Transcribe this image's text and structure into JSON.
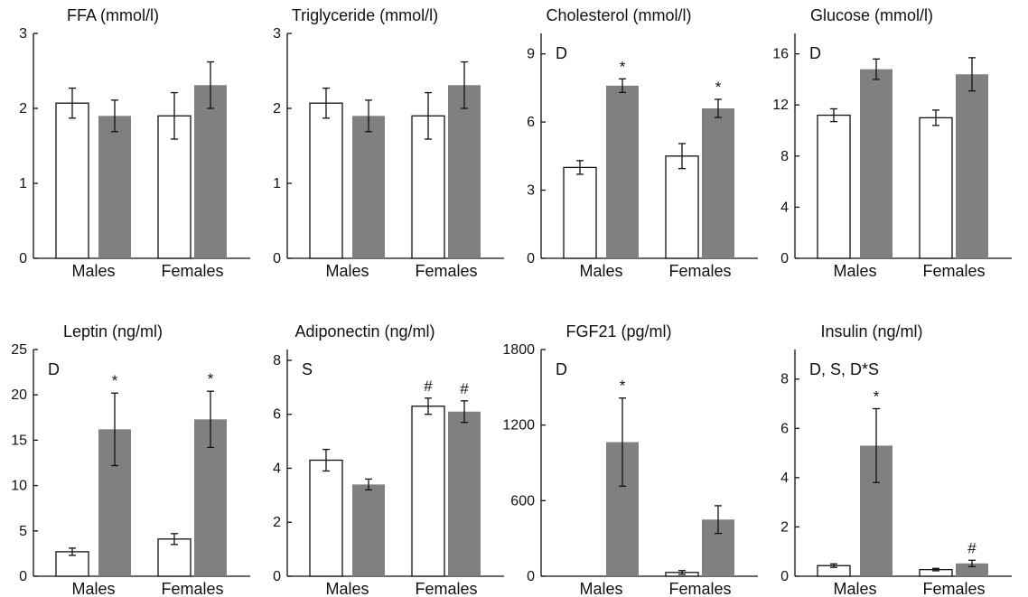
{
  "colors": {
    "control": "#ffffff",
    "treated": "#808083",
    "edge": "#111111"
  },
  "chart_data": [
    {
      "type": "bar",
      "title": "FFA (mmol/l)",
      "categories": [
        "Males",
        "Females"
      ],
      "ylim": [
        0,
        3
      ],
      "yticks": [
        0,
        1,
        2,
        3
      ],
      "series": [
        {
          "values": [
            2.07,
            1.9
          ],
          "errors": [
            0.2,
            0.31
          ],
          "fill": "control"
        },
        {
          "values": [
            1.9,
            2.31
          ],
          "errors": [
            0.21,
            0.31
          ],
          "fill": "treated"
        }
      ],
      "annotations": [],
      "significance": []
    },
    {
      "type": "bar",
      "title": "Triglyceride (mmol/l)",
      "categories": [
        "Males",
        "Females"
      ],
      "ylim": [
        0,
        3
      ],
      "yticks": [
        0,
        1,
        2,
        3
      ],
      "series": [
        {
          "values": [
            2.07,
            1.9
          ],
          "errors": [
            0.2,
            0.31
          ],
          "fill": "control"
        },
        {
          "values": [
            1.9,
            2.31
          ],
          "errors": [
            0.21,
            0.31
          ],
          "fill": "treated"
        }
      ],
      "annotations": [],
      "significance": []
    },
    {
      "type": "bar",
      "title": "Cholesterol (mmol/l)",
      "categories": [
        "Males",
        "Females"
      ],
      "ylim": [
        0,
        9.9
      ],
      "yticks": [
        0,
        3,
        6,
        9
      ],
      "series": [
        {
          "values": [
            4.0,
            4.5
          ],
          "errors": [
            0.3,
            0.55
          ],
          "fill": "control"
        },
        {
          "values": [
            7.6,
            6.6
          ],
          "errors": [
            0.3,
            0.4
          ],
          "fill": "treated"
        }
      ],
      "annotations": [
        "D"
      ],
      "significance": [
        {
          "series": 1,
          "category": 0,
          "mark": "*"
        },
        {
          "series": 1,
          "category": 1,
          "mark": "*"
        }
      ]
    },
    {
      "type": "bar",
      "title": "Glucose (mmol/l)",
      "categories": [
        "Males",
        "Females"
      ],
      "ylim": [
        0,
        17.6
      ],
      "yticks": [
        0,
        4,
        8,
        12,
        16
      ],
      "series": [
        {
          "values": [
            11.2,
            11.0
          ],
          "errors": [
            0.5,
            0.6
          ],
          "fill": "control"
        },
        {
          "values": [
            14.8,
            14.4
          ],
          "errors": [
            0.8,
            1.3
          ],
          "fill": "treated"
        }
      ],
      "annotations": [
        "D"
      ],
      "significance": []
    },
    {
      "type": "bar",
      "title": "Leptin (ng/ml)",
      "categories": [
        "Males",
        "Females"
      ],
      "ylim": [
        0,
        25
      ],
      "yticks": [
        0,
        5,
        10,
        15,
        20,
        25
      ],
      "series": [
        {
          "values": [
            2.7,
            4.1
          ],
          "errors": [
            0.4,
            0.6
          ],
          "fill": "control"
        },
        {
          "values": [
            16.2,
            17.3
          ],
          "errors": [
            4.0,
            3.1
          ],
          "fill": "treated"
        }
      ],
      "annotations": [
        "D"
      ],
      "significance": [
        {
          "series": 1,
          "category": 0,
          "mark": "*"
        },
        {
          "series": 1,
          "category": 1,
          "mark": "*"
        }
      ]
    },
    {
      "type": "bar",
      "title": "Adiponectin (ng/ml)",
      "categories": [
        "Males",
        "Females"
      ],
      "ylim": [
        0,
        8.4
      ],
      "yticks": [
        0,
        2,
        4,
        6,
        8
      ],
      "series": [
        {
          "values": [
            4.3,
            6.3
          ],
          "errors": [
            0.4,
            0.3
          ],
          "fill": "control"
        },
        {
          "values": [
            3.4,
            6.1
          ],
          "errors": [
            0.2,
            0.4
          ],
          "fill": "treated"
        }
      ],
      "annotations": [
        "S"
      ],
      "significance": [
        {
          "series": 0,
          "category": 1,
          "mark": "#"
        },
        {
          "series": 1,
          "category": 1,
          "mark": "#"
        }
      ]
    },
    {
      "type": "bar",
      "title": "FGF21 (pg/ml)",
      "categories": [
        "Males",
        "Females"
      ],
      "ylim": [
        0,
        1800
      ],
      "yticks": [
        0,
        600,
        1200,
        1800
      ],
      "series": [
        {
          "values": [
            0,
            30
          ],
          "errors": [
            0,
            15
          ],
          "fill": "control"
        },
        {
          "values": [
            1065,
            450
          ],
          "errors": [
            350,
            110
          ],
          "fill": "treated"
        }
      ],
      "annotations": [
        "D"
      ],
      "significance": [
        {
          "series": 1,
          "category": 0,
          "mark": "*"
        }
      ]
    },
    {
      "type": "bar",
      "title": "Insulin (ng/ml)",
      "categories": [
        "Males",
        "Females"
      ],
      "ylim": [
        0,
        9.2
      ],
      "yticks": [
        0,
        2,
        4,
        6,
        8
      ],
      "series": [
        {
          "values": [
            0.43,
            0.27
          ],
          "errors": [
            0.07,
            0.05
          ],
          "fill": "control"
        },
        {
          "values": [
            5.3,
            0.52
          ],
          "errors": [
            1.5,
            0.13
          ],
          "fill": "treated"
        }
      ],
      "annotations": [
        "D, S, D*S"
      ],
      "significance": [
        {
          "series": 1,
          "category": 0,
          "mark": "*"
        },
        {
          "series": 1,
          "category": 1,
          "mark": "#"
        }
      ]
    }
  ]
}
